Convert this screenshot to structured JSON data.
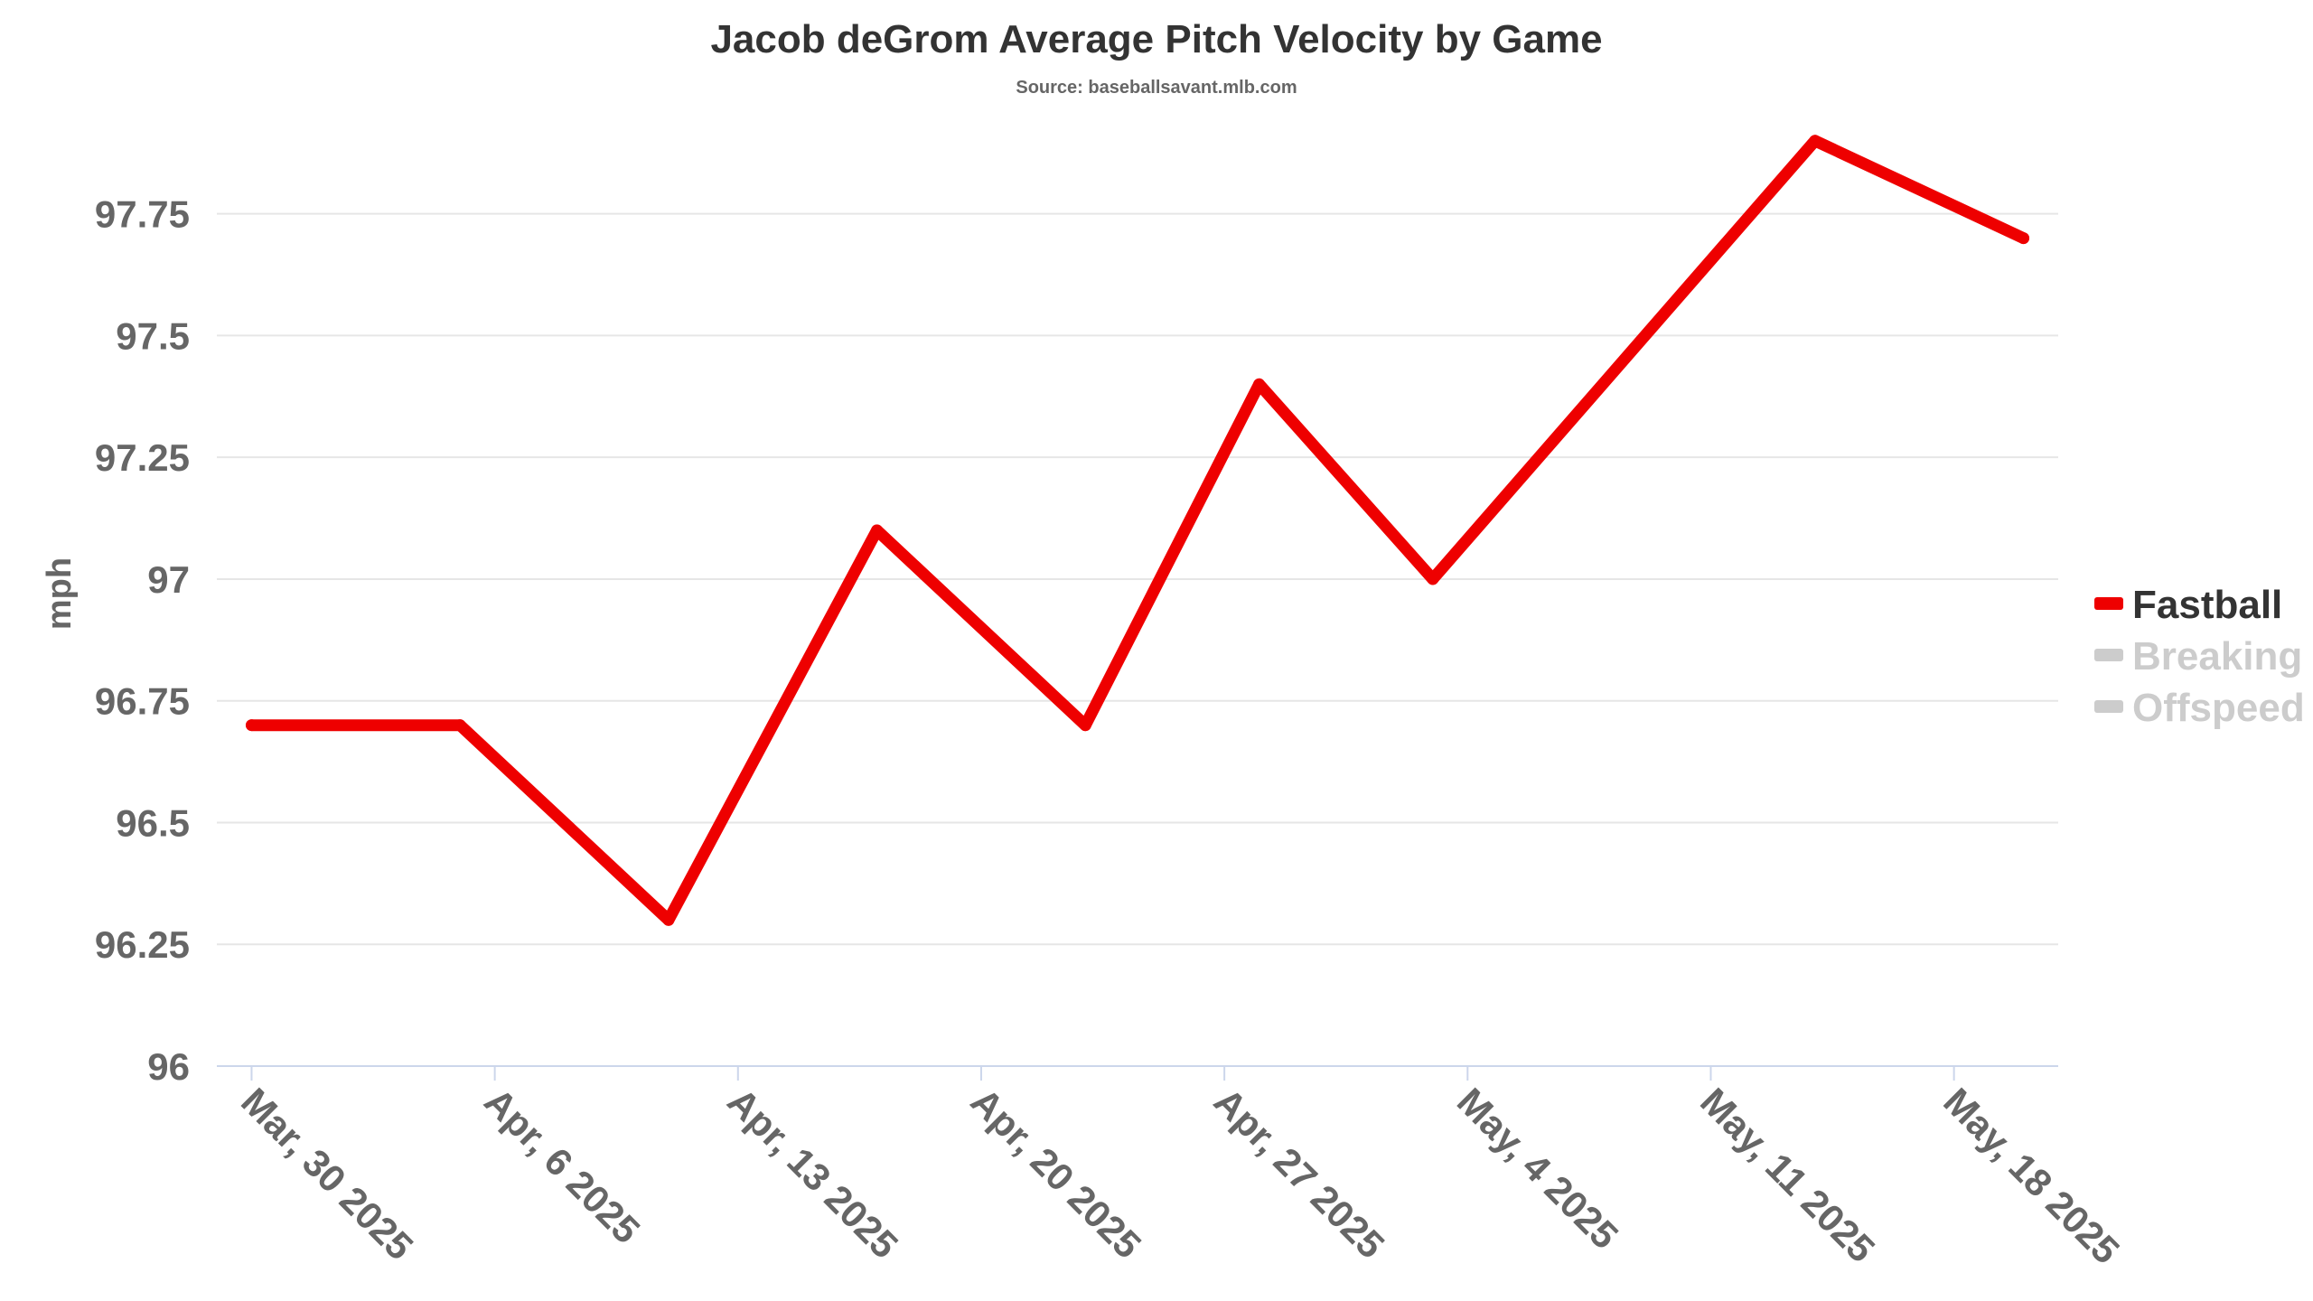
{
  "chart_data": {
    "type": "line",
    "title": "Jacob deGrom Average Pitch Velocity by Game",
    "subtitle": "Source: baseballsavant.mlb.com",
    "xlabel": "",
    "ylabel": "mph",
    "x_tick_labels": [
      "Mar, 30 2025",
      "Apr, 6 2025",
      "Apr, 13 2025",
      "Apr, 20 2025",
      "Apr, 27 2025",
      "May, 4 2025",
      "May, 11 2025",
      "May, 18 2025"
    ],
    "x_tick_dates": [
      "2025-03-30",
      "2025-04-06",
      "2025-04-13",
      "2025-04-20",
      "2025-04-27",
      "2025-05-04",
      "2025-05-11",
      "2025-05-18"
    ],
    "x_range": [
      "2025-03-29",
      "2025-05-21"
    ],
    "y_ticks": [
      96,
      96.25,
      96.5,
      96.75,
      97,
      97.25,
      97.5,
      97.75
    ],
    "y_tick_labels": [
      "96",
      "96.25",
      "96.5",
      "96.75",
      "97",
      "97.25",
      "97.5",
      "97.75"
    ],
    "ylim": [
      96,
      97.92
    ],
    "grid": "horizontal",
    "legend_position": "right",
    "series": [
      {
        "name": "Fastball",
        "color": "#ee0000",
        "visible": true,
        "points": [
          {
            "x": "2025-03-30",
            "y": 96.7
          },
          {
            "x": "2025-04-05",
            "y": 96.7
          },
          {
            "x": "2025-04-11",
            "y": 96.3
          },
          {
            "x": "2025-04-17",
            "y": 97.1
          },
          {
            "x": "2025-04-23",
            "y": 96.7
          },
          {
            "x": "2025-04-28",
            "y": 97.4
          },
          {
            "x": "2025-05-03",
            "y": 97.0
          },
          {
            "x": "2025-05-14",
            "y": 97.9
          },
          {
            "x": "2025-05-20",
            "y": 97.7
          }
        ]
      },
      {
        "name": "Breaking",
        "color": "#cccccc",
        "visible": false,
        "points": []
      },
      {
        "name": "Offspeed",
        "color": "#cccccc",
        "visible": false,
        "points": []
      }
    ]
  }
}
